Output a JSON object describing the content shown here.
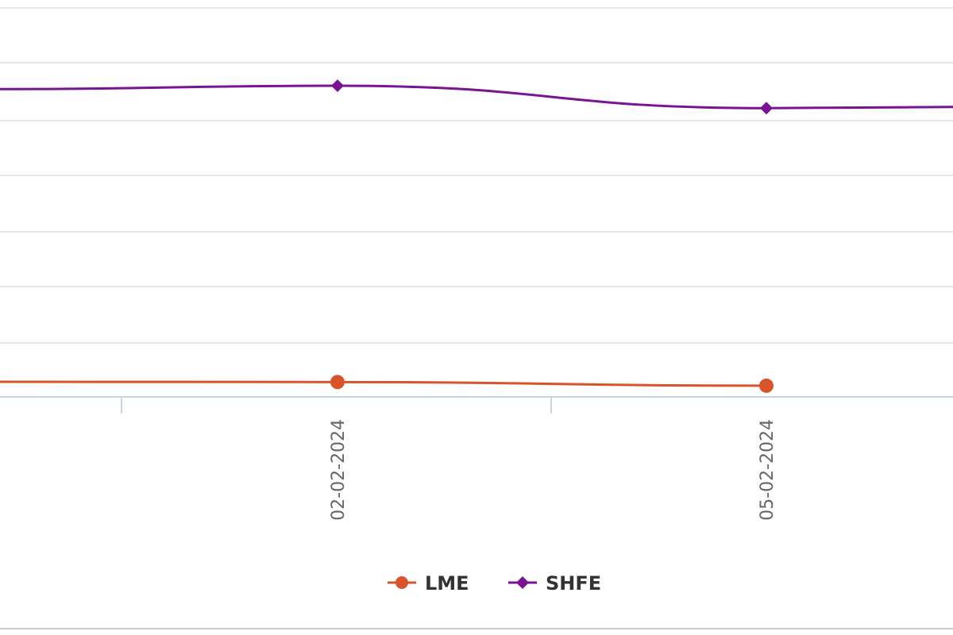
{
  "chart_data": {
    "type": "line",
    "title": "",
    "xlabel": "",
    "ylabel": "",
    "x_tick_labels": [
      "02-02-2024",
      "05-02-2024"
    ],
    "grid": true,
    "legend_placement": "bottom-center",
    "series": [
      {
        "name": "LME",
        "color": "#d9532b",
        "marker": "circle",
        "points": [
          {
            "x": "visible-left-edge",
            "y": 0.27
          },
          {
            "x": "02-02-2024",
            "y": 0.265
          },
          {
            "x": "05-02-2024",
            "y": 0.2
          }
        ]
      },
      {
        "name": "SHFE",
        "color": "#7a1294",
        "marker": "diamond",
        "points": [
          {
            "x": "visible-left-edge",
            "y": 5.5
          },
          {
            "x": "02-02-2024",
            "y": 5.56
          },
          {
            "x": "05-02-2024",
            "y": 5.16
          },
          {
            "x": "visible-right-edge",
            "y": 5.18
          }
        ]
      }
    ]
  }
}
